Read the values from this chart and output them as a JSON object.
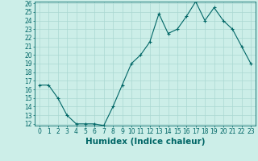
{
  "x": [
    0,
    1,
    2,
    3,
    4,
    5,
    6,
    7,
    8,
    9,
    10,
    11,
    12,
    13,
    14,
    15,
    16,
    17,
    18,
    19,
    20,
    21,
    22,
    23
  ],
  "y": [
    16.5,
    16.5,
    15.0,
    13.0,
    12.0,
    12.0,
    12.0,
    11.8,
    14.0,
    16.5,
    19.0,
    20.0,
    21.5,
    24.8,
    22.5,
    23.0,
    24.5,
    26.2,
    24.0,
    25.5,
    24.0,
    23.0,
    21.0,
    19.0
  ],
  "xlabel": "Humidex (Indice chaleur)",
  "ylim": [
    12,
    26
  ],
  "xlim": [
    -0.5,
    23.5
  ],
  "yticks": [
    12,
    13,
    14,
    15,
    16,
    17,
    18,
    19,
    20,
    21,
    22,
    23,
    24,
    25,
    26
  ],
  "xticks": [
    0,
    1,
    2,
    3,
    4,
    5,
    6,
    7,
    8,
    9,
    10,
    11,
    12,
    13,
    14,
    15,
    16,
    17,
    18,
    19,
    20,
    21,
    22,
    23
  ],
  "line_color": "#006666",
  "marker": "+",
  "bg_color": "#cceee8",
  "grid_color": "#aad8d2",
  "axes_color": "#006666",
  "xlabel_fontsize": 7.5,
  "tick_fontsize": 5.5
}
